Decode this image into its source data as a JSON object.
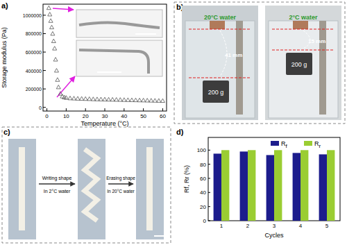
{
  "chart_data": [
    {
      "type": "scatter",
      "title": "a)",
      "x_label": "Temperature (°C)",
      "y_label": "Storage modulus (Pa)",
      "x": [
        1,
        1.5,
        2,
        2.5,
        3,
        3.5,
        4,
        4.5,
        5,
        5.5,
        6,
        7,
        8,
        9,
        10,
        12,
        14,
        16,
        18,
        20,
        22,
        24,
        26,
        28,
        30,
        32,
        34,
        36,
        38,
        40,
        42,
        44,
        46,
        48,
        50,
        52,
        54,
        56,
        58,
        60
      ],
      "values": [
        1080000,
        1010000,
        940000,
        870000,
        800000,
        720000,
        640000,
        520000,
        400000,
        300000,
        220000,
        150000,
        120000,
        110000,
        105000,
        100000,
        98000,
        96000,
        95000,
        93000,
        92000,
        90000,
        89000,
        88000,
        87000,
        86000,
        85000,
        84000,
        83000,
        82000,
        81000,
        80000,
        79000,
        78000,
        77000,
        76000,
        75000,
        74000,
        73000,
        72000
      ],
      "color": "#555555",
      "marker": "triangle",
      "xlim": [
        -2,
        62
      ],
      "xticks": [
        0,
        10,
        20,
        30,
        40,
        50,
        60
      ],
      "ylim": [
        -40000,
        1120000
      ],
      "yticks": [
        0,
        200000,
        400000,
        600000,
        800000,
        1000000
      ]
    },
    {
      "type": "photo",
      "title": "b)",
      "annotations": [
        "20°C water",
        "2°C water",
        "41 mm",
        "15 mm",
        "200 g",
        "200 g"
      ]
    },
    {
      "type": "diagram",
      "title": "c)",
      "annotations": [
        "Writing shape",
        "In 2°C water",
        "Erasing shape",
        "In 20°C water"
      ]
    },
    {
      "type": "bar",
      "title": "d)",
      "x_label": "Cycles",
      "y_label": "Rf, Rr (%)",
      "categories": [
        "1",
        "2",
        "3",
        "4",
        "5"
      ],
      "series": [
        {
          "name": "Rf",
          "color": "#1c1c8c",
          "values": [
            95,
            98,
            93,
            96,
            94
          ]
        },
        {
          "name": "Rr",
          "color": "#9acd32",
          "values": [
            100,
            100,
            100,
            100,
            100
          ]
        }
      ],
      "ylim": [
        0,
        118
      ],
      "yticks": [
        0,
        20,
        40,
        60,
        80,
        100
      ],
      "legend": "upper right"
    }
  ]
}
